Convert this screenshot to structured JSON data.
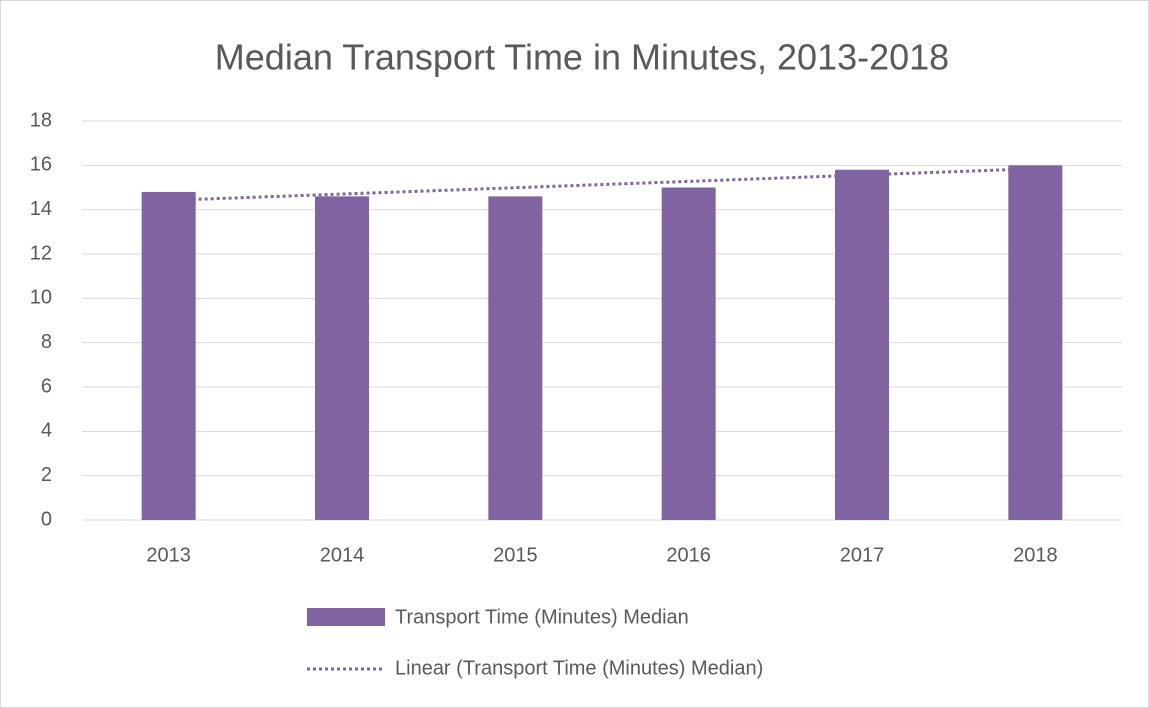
{
  "chart_data": {
    "type": "bar",
    "title": "Median Transport Time in Minutes, 2013-2018",
    "categories": [
      "2013",
      "2014",
      "2015",
      "2016",
      "2017",
      "2018"
    ],
    "series": [
      {
        "name": "Transport Time (Minutes) Median",
        "color": "#8064a2",
        "values": [
          14.8,
          14.6,
          14.6,
          15.0,
          15.8,
          16.0
        ]
      }
    ],
    "trendline": {
      "name": "Linear (Transport Time (Minutes) Median)",
      "type": "linear",
      "color": "#8064a2"
    },
    "ylim": [
      0,
      18
    ],
    "yticks": [
      0,
      2,
      4,
      6,
      8,
      10,
      12,
      14,
      16,
      18
    ],
    "grid": true,
    "legend": "bottom"
  }
}
